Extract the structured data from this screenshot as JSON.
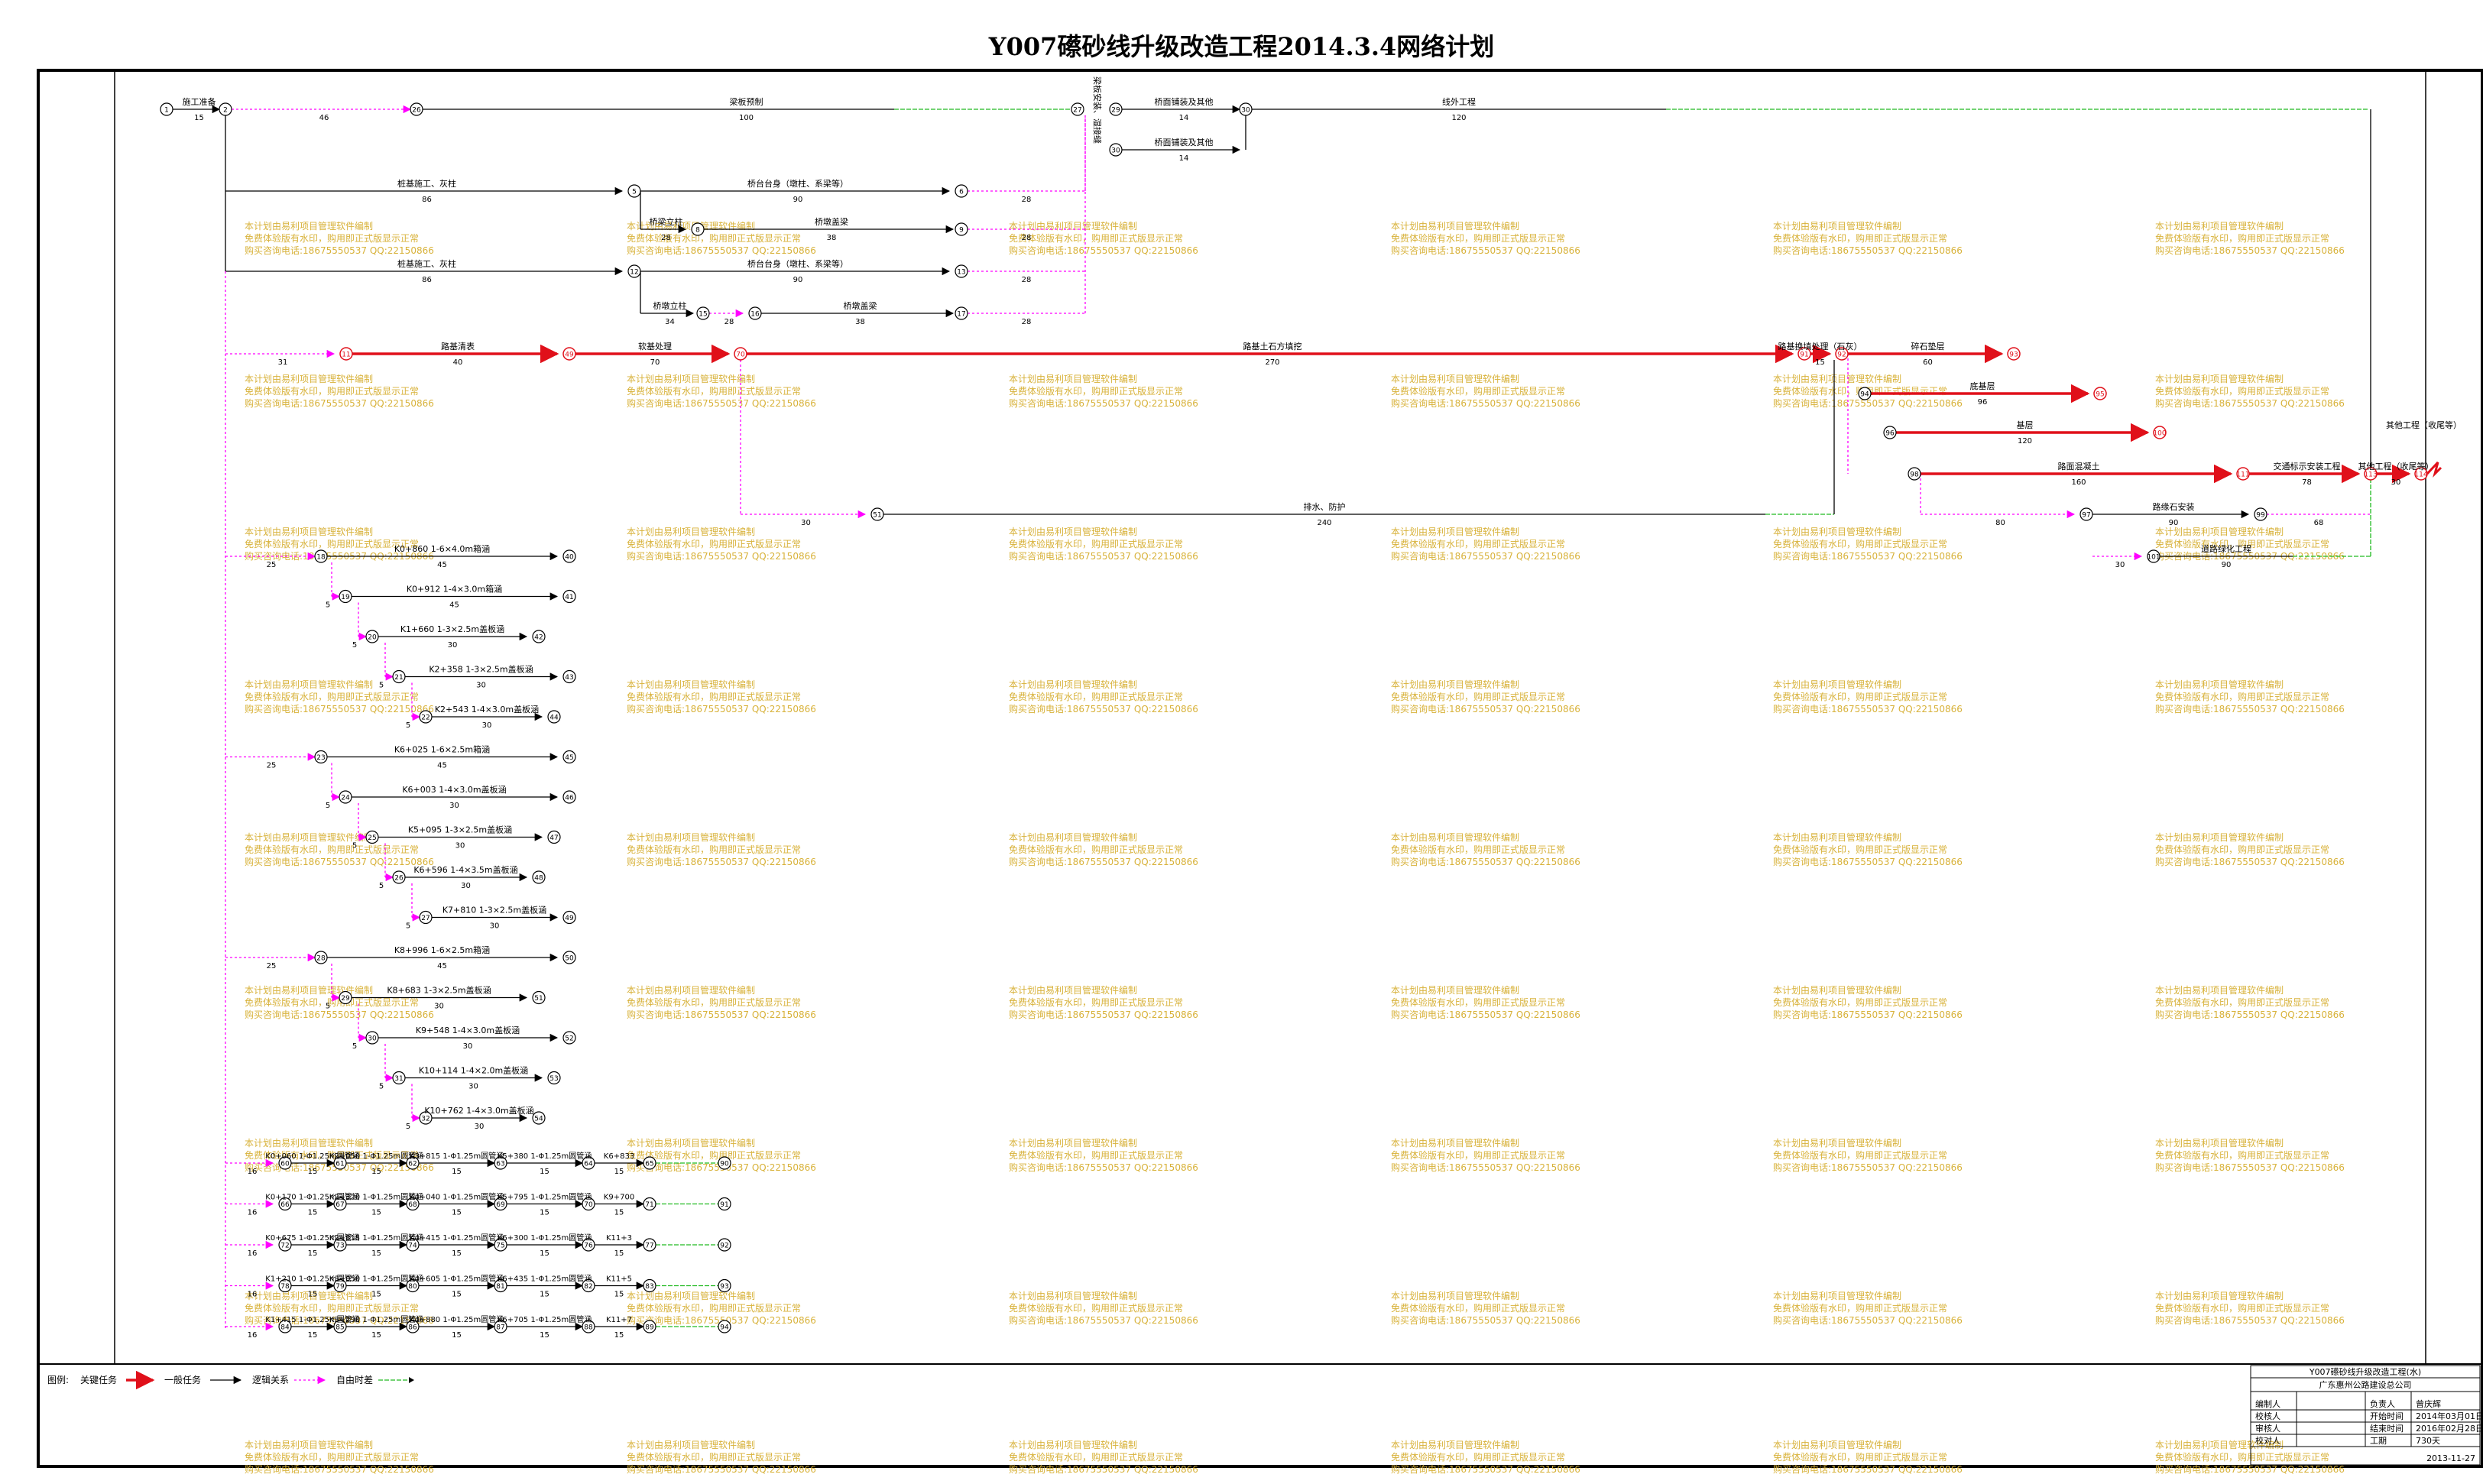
{
  "title": "Y007礤砂线升级改造工程2014.3.4网络计划",
  "colors": {
    "critical": "#e0101a",
    "normal": "#000000",
    "logic": "#ff00ff",
    "free_float": "#22bb22",
    "watermark": "#d8b23a"
  },
  "watermark_lines": [
    "本计划由易利项目管理软件编制",
    "免费体验版有水印，购用即正式版显示正常",
    "购买咨询电话:18675550537 QQ:22150866"
  ],
  "tasks": {
    "t_start": {
      "label": "施工准备",
      "dur": "15"
    },
    "t_l46": {
      "label": "",
      "dur": "46"
    },
    "t_liang": {
      "label": "梁板预制",
      "dur": "100"
    },
    "t_qm1": {
      "label": "桥面铺装及其他",
      "dur": "14"
    },
    "t_qm2": {
      "label": "桥面铺装及其他",
      "dur": "14"
    },
    "t_yanwai": {
      "label": "线外工程",
      "dur": "120"
    },
    "t_zhuang1": {
      "label": "桩基施工、灰柱",
      "dur": "86"
    },
    "t_tai1": {
      "label": "桥台台身（墩柱、系梁等）",
      "dur": "90"
    },
    "t_f28a": {
      "label": "",
      "dur": "28"
    },
    "t_lizhu1": {
      "label": "桥梁立柱",
      "dur": "28"
    },
    "t_gailiang1": {
      "label": "桥墩盖梁",
      "dur": "38"
    },
    "t_f28b": {
      "label": "",
      "dur": "28"
    },
    "t_zhuang2": {
      "label": "桩基施工、灰柱",
      "dur": "86"
    },
    "t_tai2": {
      "label": "桥台台身（墩柱、系梁等）",
      "dur": "90"
    },
    "t_f28c": {
      "label": "",
      "dur": "28"
    },
    "t_lizhu2": {
      "label": "桥墩立柱",
      "dur": "34"
    },
    "t_l28d": {
      "label": "",
      "dur": "28"
    },
    "t_gailiang2": {
      "label": "桥墩盖梁",
      "dur": "38"
    },
    "t_f28e": {
      "label": "",
      "dur": "28"
    },
    "t_l31": {
      "label": "",
      "dur": "31"
    },
    "t_qingbiao": {
      "label": "路基清表",
      "dur": "40"
    },
    "t_ruanji": {
      "label": "软基处理",
      "dur": "70"
    },
    "t_tushi": {
      "label": "路基土石方填挖",
      "dur": "270"
    },
    "t_v15": {
      "label": "路基换填处理（石灰）",
      "dur": "15"
    },
    "t_suishi": {
      "label": "碎石垫层",
      "dur": "60"
    },
    "t_dianceng": {
      "label": "底基层",
      "dur": "96"
    },
    "t_jiceng": {
      "label": "基层",
      "dur": "120"
    },
    "t_mianceng": {
      "label": "路面混凝土",
      "dur": "160"
    },
    "t_jiaotong": {
      "label": "交通标示安装工程",
      "dur": "78"
    },
    "t_f80": {
      "label": "",
      "dur": "80"
    },
    "t_lvjiao": {
      "label": "路缘石安装",
      "dur": "90"
    },
    "t_f68": {
      "label": "",
      "dur": "68"
    },
    "t_l30": {
      "label": "",
      "dur": "30"
    },
    "t_yuanlin": {
      "label": "道路绿化工程",
      "dur": "90"
    },
    "t_qita": {
      "label": "其他工程（收尾等）",
      "dur": "30"
    },
    "t_l30b": {
      "label": "",
      "dur": "30"
    },
    "t_paishui": {
      "label": "排水、防护",
      "dur": "240"
    }
  },
  "culverts": [
    {
      "label": "K0+860 1-6×4.0m箱涵",
      "dur": "45",
      "pre": "25"
    },
    {
      "label": "K0+912 1-4×3.0m箱涵",
      "dur": "45",
      "pre": "5"
    },
    {
      "label": "K1+660 1-3×2.5m盖板涵",
      "dur": "30",
      "pre": "5"
    },
    {
      "label": "K2+358 1-3×2.5m盖板涵",
      "dur": "30",
      "pre": "5"
    },
    {
      "label": "K2+543 1-4×3.0m盖板涵",
      "dur": "30",
      "pre": "5"
    },
    {
      "label": "K6+025 1-6×2.5m箱涵",
      "dur": "45",
      "pre": "25"
    },
    {
      "label": "K6+003 1-4×3.0m盖板涵",
      "dur": "30",
      "pre": "5"
    },
    {
      "label": "K5+095 1-3×2.5m盖板涵",
      "dur": "30",
      "pre": "5"
    },
    {
      "label": "K6+596 1-4×3.5m盖板涵",
      "dur": "30",
      "pre": "5"
    },
    {
      "label": "K7+810 1-3×2.5m盖板涵",
      "dur": "30",
      "pre": "5"
    },
    {
      "label": "K8+996 1-6×2.5m箱涵",
      "dur": "45",
      "pre": "25"
    },
    {
      "label": "K8+683 1-3×2.5m盖板涵",
      "dur": "30",
      "pre": "5"
    },
    {
      "label": "K9+548 1-4×3.0m盖板涵",
      "dur": "30",
      "pre": "5"
    },
    {
      "label": "K10+114 1-4×2.0m盖板涵",
      "dur": "30",
      "pre": "5"
    },
    {
      "label": "K10+762 1-4×3.0m盖板涵",
      "dur": "30",
      "pre": "5"
    }
  ],
  "pipes": [
    {
      "c1": "K0+060 1-Φ1.25m圆管涵",
      "c2": "K2+050 1-Φ1.25m圆管涵",
      "c3": "K3+815 1-Φ1.25m圆管涵",
      "c4": "K5+380 1-Φ1.25m圆管涵",
      "c5": "K6+833",
      "pre": "16"
    },
    {
      "c1": "K0+170 1-Φ1.25m圆管涵",
      "c2": "K2+320 1-Φ1.25m圆管涵",
      "c3": "K4+040 1-Φ1.25m圆管涵",
      "c4": "K5+795 1-Φ1.25m圆管涵",
      "c5": "K9+700",
      "pre": "16"
    },
    {
      "c1": "K0+675 1-Φ1.25m圆管涵",
      "c2": "K2+815 1-Φ1.25m圆管涵",
      "c3": "K4+415 1-Φ1.25m圆管涵",
      "c4": "K6+300 1-Φ1.25m圆管涵",
      "c5": "K11+3",
      "pre": "16"
    },
    {
      "c1": "K1+210 1-Φ1.25m圆管涵",
      "c2": "K3+050 1-Φ1.25m圆管涵",
      "c3": "K4+605 1-Φ1.25m圆管涵",
      "c4": "K6+435 1-Φ1.25m圆管涵",
      "c5": "K11+5",
      "pre": "16"
    },
    {
      "c1": "K1+415 1-Φ1.25m圆管涵",
      "c2": "K3+290 1-Φ1.25m圆管涵",
      "c3": "K4+880 1-Φ1.25m圆管涵",
      "c4": "K6+705 1-Φ1.25m圆管涵",
      "c5": "K11+7",
      "pre": "16"
    }
  ],
  "pipe_dur": "15",
  "legend": {
    "label": "图例:",
    "critical": "关键任务",
    "normal": "一般任务",
    "logic": "逻辑关系",
    "float": "自由时差"
  },
  "title_block": {
    "project": "Y007礤砂线升级改造工程(水)",
    "company": "广东惠州公路建设总公司",
    "rows": [
      [
        "编制人",
        "",
        "负责人",
        "曾庆辉"
      ],
      [
        "校核人",
        "",
        "开始时间",
        "2014年03月01日"
      ],
      [
        "审核人",
        "",
        "结束时间",
        "2016年02月28日"
      ],
      [
        "校对人",
        "",
        "工期",
        "730天"
      ]
    ],
    "date": "2013-11-27"
  }
}
